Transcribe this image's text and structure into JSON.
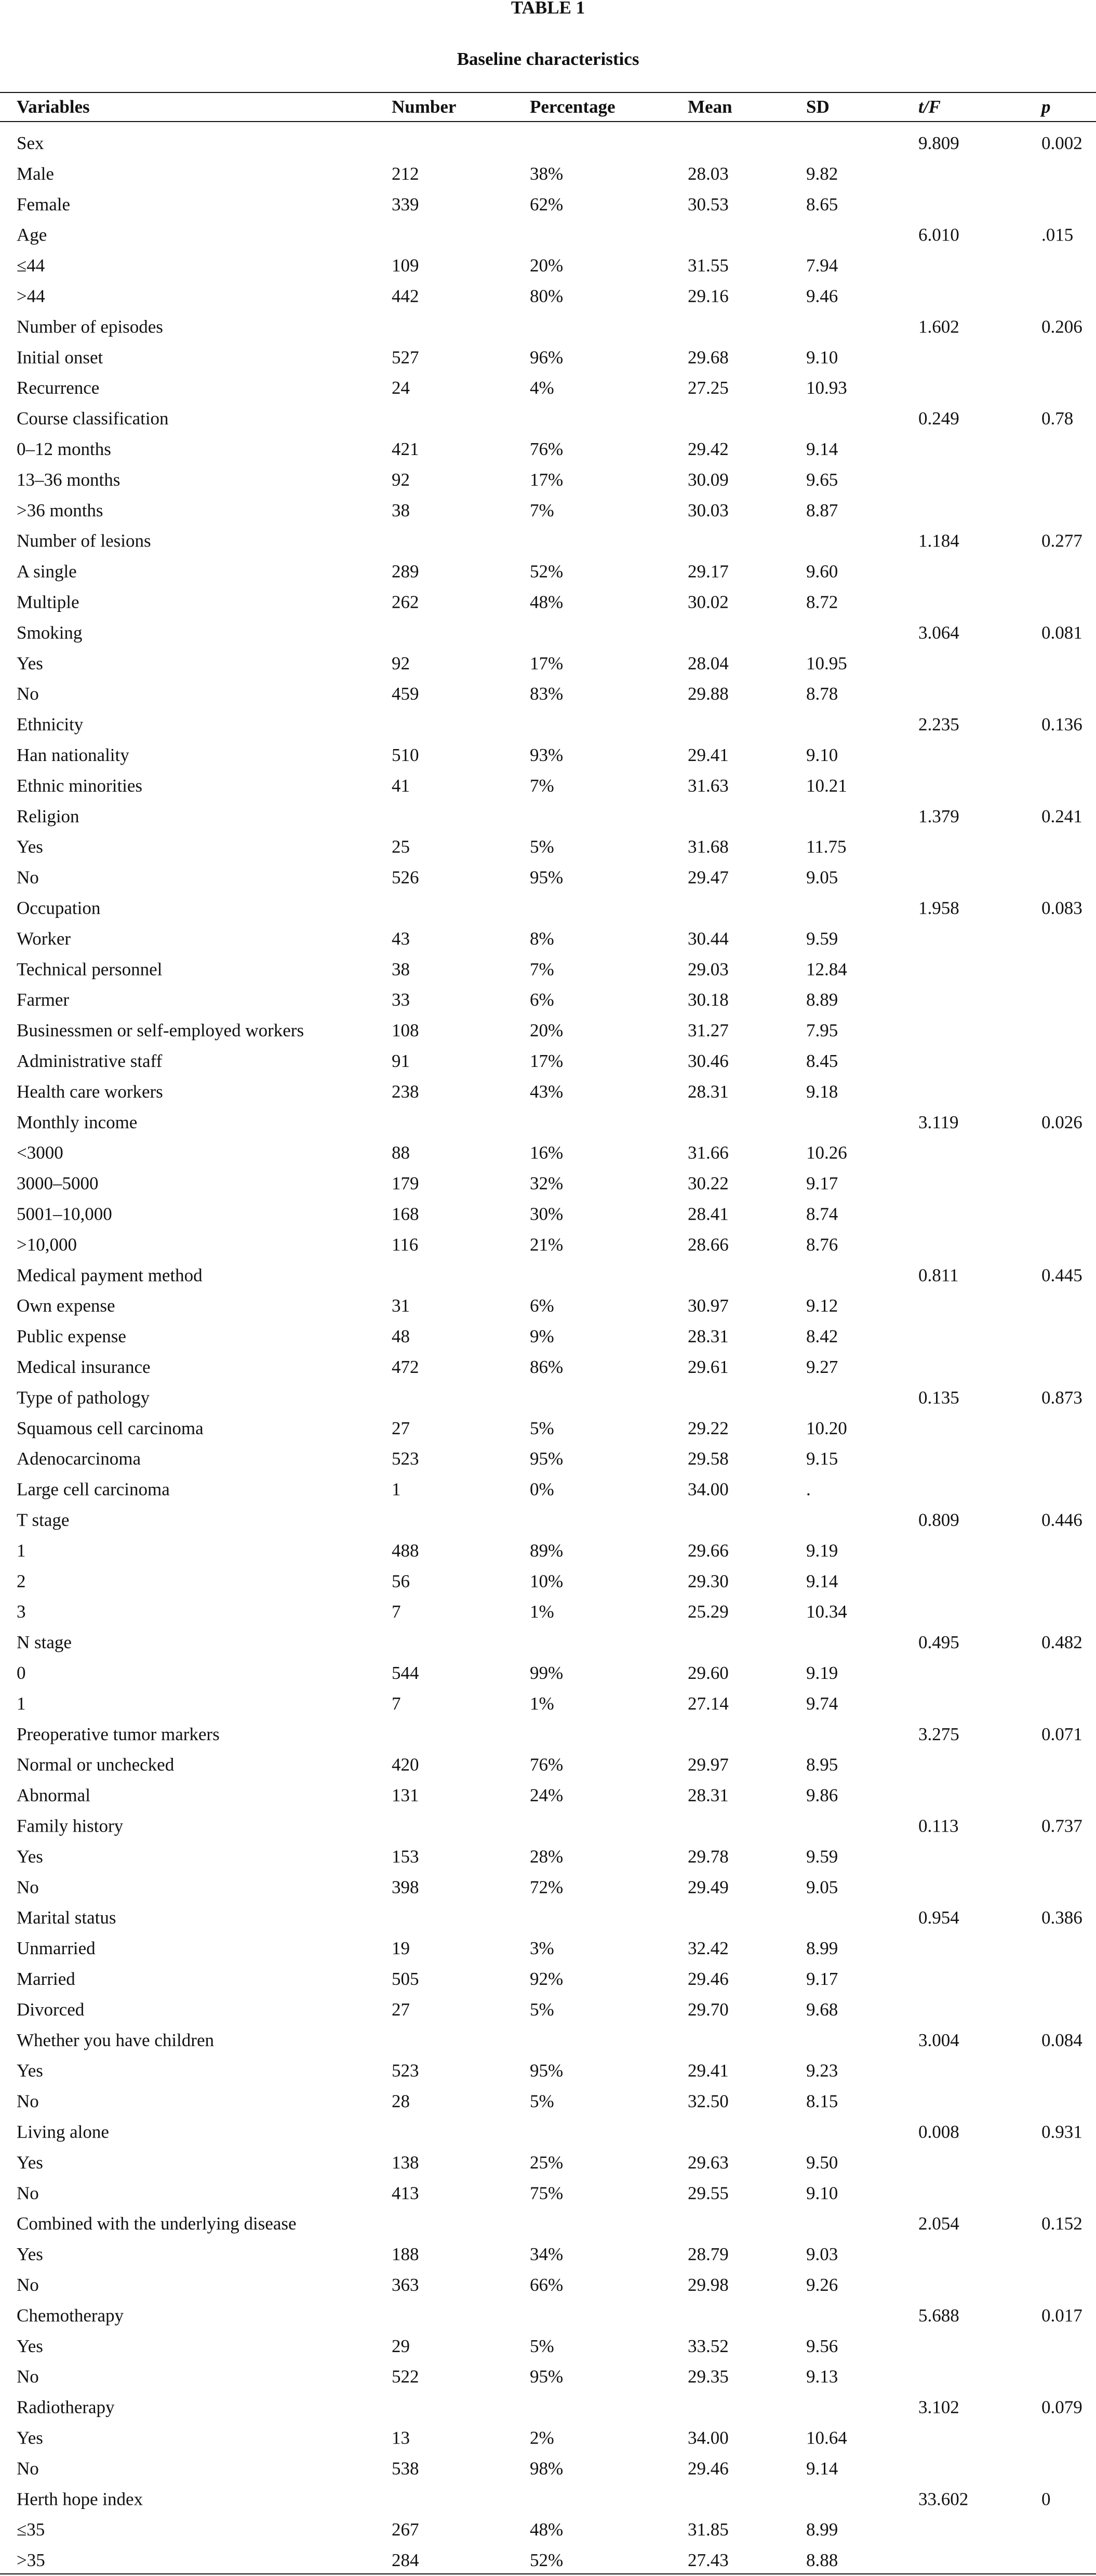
{
  "title": "TABLE 1",
  "subtitle": "Baseline characteristics",
  "table": {
    "columns": [
      "Variables",
      "Number",
      "Percentage",
      "Mean",
      "SD",
      "t/F",
      "p"
    ],
    "rows": [
      {
        "label": "Sex",
        "t_f": "9.809",
        "p": "0.002"
      },
      {
        "label": "Male",
        "number": "212",
        "percentage": "38%",
        "mean": "28.03",
        "sd": "9.82"
      },
      {
        "label": "Female",
        "number": "339",
        "percentage": "62%",
        "mean": "30.53",
        "sd": "8.65"
      },
      {
        "label": "Age",
        "t_f": "6.010",
        "p": ".015"
      },
      {
        "label": "≤44",
        "number": "109",
        "percentage": "20%",
        "mean": "31.55",
        "sd": "7.94"
      },
      {
        "label": ">44",
        "number": "442",
        "percentage": "80%",
        "mean": "29.16",
        "sd": "9.46"
      },
      {
        "label": "Number of episodes",
        "t_f": "1.602",
        "p": "0.206"
      },
      {
        "label": "Initial onset",
        "number": "527",
        "percentage": "96%",
        "mean": "29.68",
        "sd": "9.10"
      },
      {
        "label": "Recurrence",
        "number": "24",
        "percentage": "4%",
        "mean": "27.25",
        "sd": "10.93"
      },
      {
        "label": "Course classification",
        "t_f": "0.249",
        "p": "0.78"
      },
      {
        "label": "0–12 months",
        "number": "421",
        "percentage": "76%",
        "mean": "29.42",
        "sd": "9.14"
      },
      {
        "label": "13–36 months",
        "number": "92",
        "percentage": "17%",
        "mean": "30.09",
        "sd": "9.65"
      },
      {
        "label": ">36 months",
        "number": "38",
        "percentage": "7%",
        "mean": "30.03",
        "sd": "8.87"
      },
      {
        "label": "Number of lesions",
        "t_f": "1.184",
        "p": "0.277"
      },
      {
        "label": "A single",
        "number": "289",
        "percentage": "52%",
        "mean": "29.17",
        "sd": "9.60"
      },
      {
        "label": "Multiple",
        "number": "262",
        "percentage": "48%",
        "mean": "30.02",
        "sd": "8.72"
      },
      {
        "label": "Smoking",
        "t_f": "3.064",
        "p": "0.081"
      },
      {
        "label": "Yes",
        "number": "92",
        "percentage": "17%",
        "mean": "28.04",
        "sd": "10.95"
      },
      {
        "label": "No",
        "number": "459",
        "percentage": "83%",
        "mean": "29.88",
        "sd": "8.78"
      },
      {
        "label": "Ethnicity",
        "t_f": "2.235",
        "p": "0.136"
      },
      {
        "label": "Han nationality",
        "number": "510",
        "percentage": "93%",
        "mean": "29.41",
        "sd": "9.10"
      },
      {
        "label": "Ethnic minorities",
        "number": "41",
        "percentage": "7%",
        "mean": "31.63",
        "sd": "10.21"
      },
      {
        "label": "Religion",
        "t_f": "1.379",
        "p": "0.241"
      },
      {
        "label": "Yes",
        "number": "25",
        "percentage": "5%",
        "mean": "31.68",
        "sd": "11.75"
      },
      {
        "label": "No",
        "number": "526",
        "percentage": "95%",
        "mean": "29.47",
        "sd": "9.05"
      },
      {
        "label": "Occupation",
        "t_f": "1.958",
        "p": "0.083"
      },
      {
        "label": "Worker",
        "number": "43",
        "percentage": "8%",
        "mean": "30.44",
        "sd": "9.59"
      },
      {
        "label": "Technical personnel",
        "number": "38",
        "percentage": "7%",
        "mean": "29.03",
        "sd": "12.84"
      },
      {
        "label": "Farmer",
        "number": "33",
        "percentage": "6%",
        "mean": "30.18",
        "sd": "8.89"
      },
      {
        "label": "Businessmen or self-employed workers",
        "number": "108",
        "percentage": "20%",
        "mean": "31.27",
        "sd": "7.95"
      },
      {
        "label": "Administrative staff",
        "number": "91",
        "percentage": "17%",
        "mean": "30.46",
        "sd": "8.45"
      },
      {
        "label": "Health care workers",
        "number": "238",
        "percentage": "43%",
        "mean": "28.31",
        "sd": "9.18"
      },
      {
        "label": "Monthly income",
        "t_f": "3.119",
        "p": "0.026"
      },
      {
        "label": "<3000",
        "number": "88",
        "percentage": "16%",
        "mean": "31.66",
        "sd": "10.26"
      },
      {
        "label": "3000–5000",
        "number": "179",
        "percentage": "32%",
        "mean": "30.22",
        "sd": "9.17"
      },
      {
        "label": "5001–10,000",
        "number": "168",
        "percentage": "30%",
        "mean": "28.41",
        "sd": "8.74"
      },
      {
        "label": ">10,000",
        "number": "116",
        "percentage": "21%",
        "mean": "28.66",
        "sd": "8.76"
      },
      {
        "label": "Medical payment method",
        "t_f": "0.811",
        "p": "0.445"
      },
      {
        "label": "Own expense",
        "number": "31",
        "percentage": "6%",
        "mean": "30.97",
        "sd": "9.12"
      },
      {
        "label": "Public expense",
        "number": "48",
        "percentage": "9%",
        "mean": "28.31",
        "sd": "8.42"
      },
      {
        "label": "Medical insurance",
        "number": "472",
        "percentage": "86%",
        "mean": "29.61",
        "sd": "9.27"
      },
      {
        "label": "Type of pathology",
        "t_f": "0.135",
        "p": "0.873"
      },
      {
        "label": "Squamous cell carcinoma",
        "number": "27",
        "percentage": "5%",
        "mean": "29.22",
        "sd": "10.20"
      },
      {
        "label": "Adenocarcinoma",
        "number": "523",
        "percentage": "95%",
        "mean": "29.58",
        "sd": "9.15"
      },
      {
        "label": "Large cell carcinoma",
        "number": "1",
        "percentage": "0%",
        "mean": "34.00",
        "sd": "."
      },
      {
        "label": "T stage",
        "t_f": "0.809",
        "p": "0.446"
      },
      {
        "label": "1",
        "number": "488",
        "percentage": "89%",
        "mean": "29.66",
        "sd": "9.19"
      },
      {
        "label": "2",
        "number": "56",
        "percentage": "10%",
        "mean": "29.30",
        "sd": "9.14"
      },
      {
        "label": "3",
        "number": "7",
        "percentage": "1%",
        "mean": "25.29",
        "sd": "10.34"
      },
      {
        "label": "N stage",
        "t_f": "0.495",
        "p": "0.482"
      },
      {
        "label": "0",
        "number": "544",
        "percentage": "99%",
        "mean": "29.60",
        "sd": "9.19"
      },
      {
        "label": "1",
        "number": "7",
        "percentage": "1%",
        "mean": "27.14",
        "sd": "9.74"
      },
      {
        "label": "Preoperative tumor markers",
        "t_f": "3.275",
        "p": "0.071"
      },
      {
        "label": "Normal or unchecked",
        "number": "420",
        "percentage": "76%",
        "mean": "29.97",
        "sd": "8.95"
      },
      {
        "label": "Abnormal",
        "number": "131",
        "percentage": "24%",
        "mean": "28.31",
        "sd": "9.86"
      },
      {
        "label": "Family history",
        "t_f": "0.113",
        "p": "0.737"
      },
      {
        "label": "Yes",
        "number": "153",
        "percentage": "28%",
        "mean": "29.78",
        "sd": "9.59"
      },
      {
        "label": "No",
        "number": "398",
        "percentage": "72%",
        "mean": "29.49",
        "sd": "9.05"
      },
      {
        "label": "Marital status",
        "t_f": "0.954",
        "p": "0.386"
      },
      {
        "label": "Unmarried",
        "number": "19",
        "percentage": "3%",
        "mean": "32.42",
        "sd": "8.99"
      },
      {
        "label": "Married",
        "number": "505",
        "percentage": "92%",
        "mean": "29.46",
        "sd": "9.17"
      },
      {
        "label": "Divorced",
        "number": "27",
        "percentage": "5%",
        "mean": "29.70",
        "sd": "9.68"
      },
      {
        "label": "Whether you have children",
        "t_f": "3.004",
        "p": "0.084"
      },
      {
        "label": "Yes",
        "number": "523",
        "percentage": "95%",
        "mean": "29.41",
        "sd": "9.23"
      },
      {
        "label": "No",
        "number": "28",
        "percentage": "5%",
        "mean": "32.50",
        "sd": "8.15"
      },
      {
        "label": "Living alone",
        "t_f": "0.008",
        "p": "0.931"
      },
      {
        "label": "Yes",
        "number": "138",
        "percentage": "25%",
        "mean": "29.63",
        "sd": "9.50"
      },
      {
        "label": "No",
        "number": "413",
        "percentage": "75%",
        "mean": "29.55",
        "sd": "9.10"
      },
      {
        "label": "Combined with the underlying disease",
        "t_f": "2.054",
        "p": "0.152"
      },
      {
        "label": "Yes",
        "number": "188",
        "percentage": "34%",
        "mean": "28.79",
        "sd": "9.03"
      },
      {
        "label": "No",
        "number": "363",
        "percentage": "66%",
        "mean": "29.98",
        "sd": "9.26"
      },
      {
        "label": "Chemotherapy",
        "t_f": "5.688",
        "p": "0.017"
      },
      {
        "label": "Yes",
        "number": "29",
        "percentage": "5%",
        "mean": "33.52",
        "sd": "9.56"
      },
      {
        "label": "No",
        "number": "522",
        "percentage": "95%",
        "mean": "29.35",
        "sd": "9.13"
      },
      {
        "label": "Radiotherapy",
        "t_f": "3.102",
        "p": "0.079"
      },
      {
        "label": "Yes",
        "number": "13",
        "percentage": "2%",
        "mean": "34.00",
        "sd": "10.64"
      },
      {
        "label": "No",
        "number": "538",
        "percentage": "98%",
        "mean": "29.46",
        "sd": "9.14"
      },
      {
        "label": "Herth hope index",
        "t_f": "33.602",
        "p": "0"
      },
      {
        "label": "≤35",
        "number": "267",
        "percentage": "48%",
        "mean": "31.85",
        "sd": "8.99"
      },
      {
        "label": ">35",
        "number": "284",
        "percentage": "52%",
        "mean": "27.43",
        "sd": "8.88"
      }
    ]
  }
}
